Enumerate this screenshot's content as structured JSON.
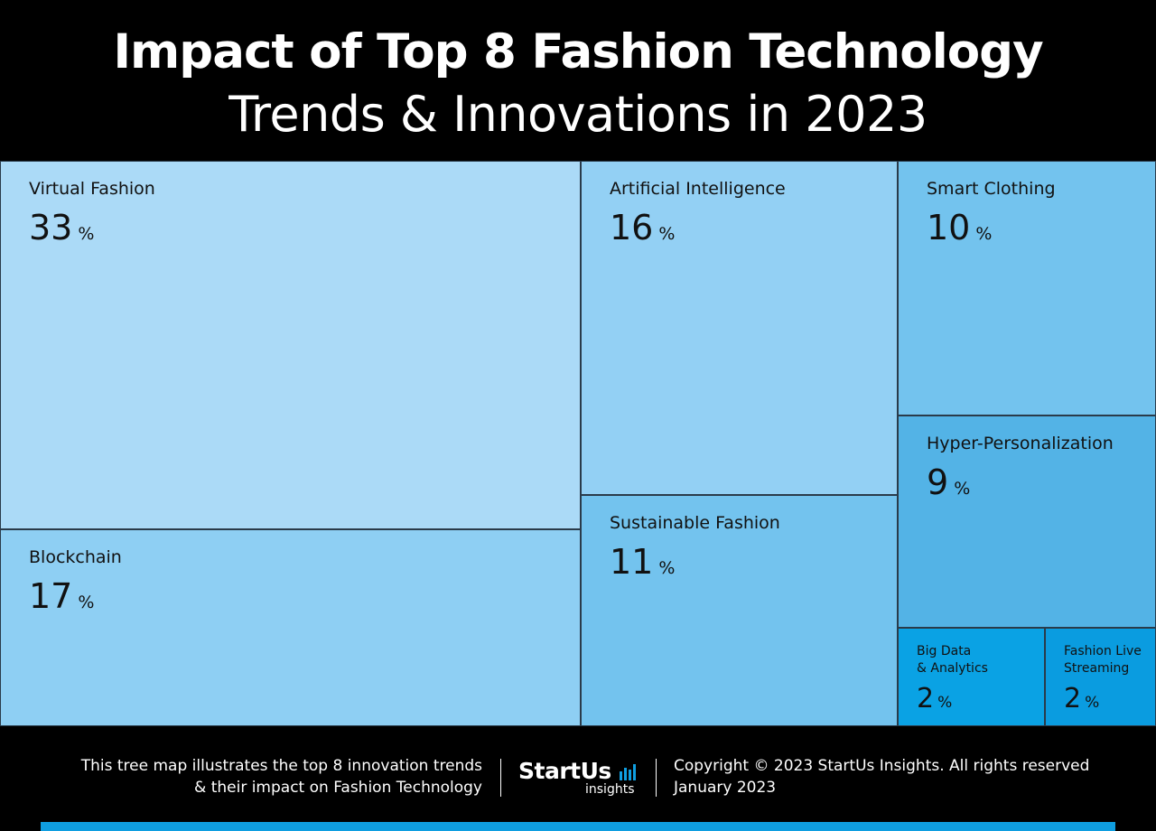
{
  "header": {
    "title": "Impact of Top 8 Fashion Technology",
    "subtitle": "Trends & Innovations in 2023"
  },
  "chart_data": {
    "type": "treemap",
    "unit": "%",
    "items": [
      {
        "label": "Virtual Fashion",
        "value": 33,
        "color": "#abdaf7"
      },
      {
        "label": "Blockchain",
        "value": 17,
        "color": "#8ecff3"
      },
      {
        "label": "Artificial Intelligence",
        "value": 16,
        "color": "#93d0f4"
      },
      {
        "label": "Sustainable Fashion",
        "value": 11,
        "color": "#73c3ee"
      },
      {
        "label": "Smart Clothing",
        "value": 10,
        "color": "#73c3ee"
      },
      {
        "label": "Hyper-Personalization",
        "value": 9,
        "color": "#53b3e6"
      },
      {
        "label": "Big Data\n& Analytics",
        "value": 2,
        "color": "#0aa2e4"
      },
      {
        "label": "Fashion Live\nStreaming",
        "value": 2,
        "color": "#0a9ce0"
      }
    ]
  },
  "footer": {
    "caption_line1": "This tree map illustrates the top 8 innovation trends",
    "caption_line2": "& their impact on Fashion Technology",
    "logo_main": "StartUs",
    "logo_sub": "insights",
    "copyright": "Copyright © 2023 StartUs Insights. All rights reserved",
    "date": "January 2023",
    "accent_color": "#0f9ee0"
  }
}
